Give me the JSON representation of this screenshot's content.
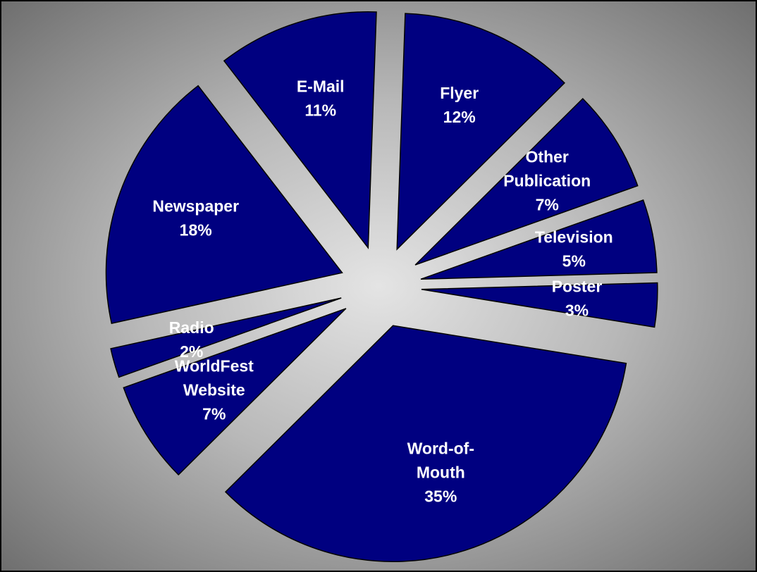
{
  "chart_data": {
    "type": "pie",
    "exploded": true,
    "background": "radial-gradient-gray",
    "slice_color": "#000080",
    "outline_color": "#000000",
    "label_color": "#ffffff",
    "slices": [
      {
        "label_lines": [
          "Flyer"
        ],
        "value": 12,
        "value_label": "12%"
      },
      {
        "label_lines": [
          "Other",
          "Publication"
        ],
        "value": 7,
        "value_label": "7%"
      },
      {
        "label_lines": [
          "Television"
        ],
        "value": 5,
        "value_label": "5%"
      },
      {
        "label_lines": [
          "Poster"
        ],
        "value": 3,
        "value_label": "3%"
      },
      {
        "label_lines": [
          "Word-of-",
          "Mouth"
        ],
        "value": 35,
        "value_label": "35%"
      },
      {
        "label_lines": [
          "WorldFest",
          "Website"
        ],
        "value": 7,
        "value_label": "7%"
      },
      {
        "label_lines": [
          "Radio"
        ],
        "value": 2,
        "value_label": "2%"
      },
      {
        "label_lines": [
          "Newspaper"
        ],
        "value": 18,
        "value_label": "18%"
      },
      {
        "label_lines": [
          "E-Mail"
        ],
        "value": 11,
        "value_label": "11%"
      }
    ]
  }
}
